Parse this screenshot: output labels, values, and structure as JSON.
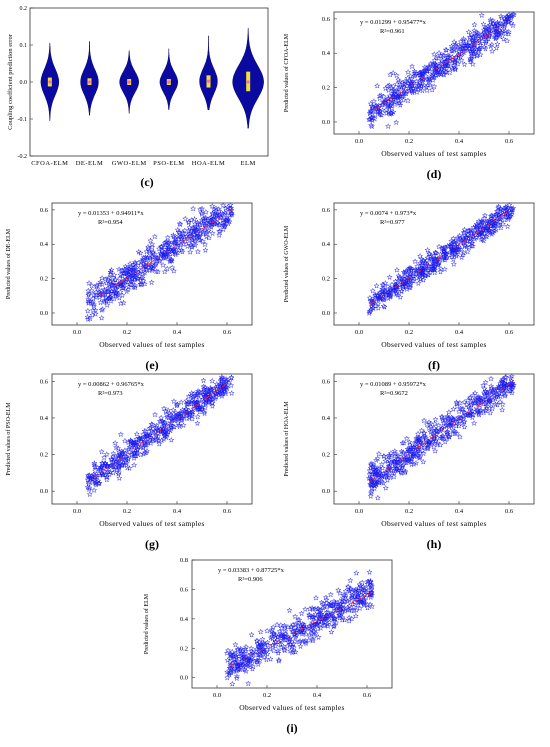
{
  "chart_data": [
    {
      "id": "c",
      "type": "violin",
      "panel_label": "(c)",
      "title": "",
      "xlabel": "",
      "ylabel": "Coupling coefficient prediction error",
      "categories": [
        "CFOA-ELM",
        "DE-ELM",
        "GWO-ELM",
        "PSO-ELM",
        "HOA-ELM",
        "ELM"
      ],
      "ylim": [
        -0.2,
        0.2
      ],
      "yticks": [
        "-0.2",
        "-0.1",
        "0.0",
        "0.1",
        "0.2"
      ],
      "violins": [
        {
          "name": "CFOA-ELM",
          "min": -0.105,
          "max": 0.105,
          "median": 0.0,
          "q1": -0.012,
          "q3": 0.012,
          "maxWidth": 0.45
        },
        {
          "name": "DE-ELM",
          "min": -0.09,
          "max": 0.11,
          "median": 0.0,
          "q1": -0.008,
          "q3": 0.01,
          "maxWidth": 0.45
        },
        {
          "name": "GWO-ELM",
          "min": -0.085,
          "max": 0.085,
          "median": 0.0,
          "q1": -0.008,
          "q3": 0.008,
          "maxWidth": 0.48
        },
        {
          "name": "PSO-ELM",
          "min": -0.075,
          "max": 0.09,
          "median": 0.0,
          "q1": -0.008,
          "q3": 0.008,
          "maxWidth": 0.45
        },
        {
          "name": "HOA-ELM",
          "min": -0.075,
          "max": 0.125,
          "median": 0.002,
          "q1": -0.015,
          "q3": 0.018,
          "maxWidth": 0.45
        },
        {
          "name": "ELM",
          "min": -0.125,
          "max": 0.145,
          "median": 0.0,
          "q1": -0.025,
          "q3": 0.028,
          "maxWidth": 0.78
        }
      ],
      "colors": {
        "violin": "#0a0aa0",
        "box": "#f0e030",
        "median": "#ff66cc"
      }
    },
    {
      "id": "d",
      "type": "scatter",
      "panel_label": "(d)",
      "xlabel": "Observed values of test samples",
      "ylabel": "Predicted values of CFOA-ELM",
      "equation": "y = 0.01299 + 0.95477*x",
      "r2": "R²=0.961",
      "intercept": 0.01299,
      "slope": 0.95477,
      "spread": 0.045,
      "xlim": [
        -0.1,
        0.7
      ],
      "ylim": [
        -0.07,
        0.64
      ],
      "xticks": [
        "0.0",
        "0.2",
        "0.4",
        "0.6"
      ],
      "yticks": [
        "0.0",
        "0.2",
        "0.4",
        "0.6"
      ],
      "x_range": [
        0.04,
        0.62
      ]
    },
    {
      "id": "e",
      "type": "scatter",
      "panel_label": "(e)",
      "xlabel": "Observed values of test samples",
      "ylabel": "Predicted values of DE-ELM",
      "equation": "y = 0.01353 + 0.94911*x",
      "r2": "R²=0.954",
      "intercept": 0.01353,
      "slope": 0.94911,
      "spread": 0.05,
      "xlim": [
        -0.1,
        0.7
      ],
      "ylim": [
        -0.07,
        0.64
      ],
      "xticks": [
        "0.0",
        "0.2",
        "0.4",
        "0.6"
      ],
      "yticks": [
        "0.0",
        "0.2",
        "0.4",
        "0.6"
      ],
      "x_range": [
        0.04,
        0.62
      ]
    },
    {
      "id": "f",
      "type": "scatter",
      "panel_label": "(f)",
      "xlabel": "Observed values of test samples",
      "ylabel": "Predicted values of GWO-ELM",
      "equation": "y = 0.0074 + 0.973*x",
      "r2": "R²=0.977",
      "intercept": 0.0074,
      "slope": 0.973,
      "spread": 0.035,
      "xlim": [
        -0.1,
        0.7
      ],
      "ylim": [
        -0.07,
        0.64
      ],
      "xticks": [
        "0.0",
        "0.2",
        "0.4",
        "0.6"
      ],
      "yticks": [
        "0.0",
        "0.2",
        "0.4",
        "0.6"
      ],
      "x_range": [
        0.04,
        0.62
      ]
    },
    {
      "id": "g",
      "type": "scatter",
      "panel_label": "(g)",
      "xlabel": "Observed values of test samples",
      "ylabel": "Predicted values of PSO-ELM",
      "equation": "y = 0.00862 + 0.96765*x",
      "r2": "R²=0.973",
      "intercept": 0.00862,
      "slope": 0.96765,
      "spread": 0.037,
      "xlim": [
        -0.1,
        0.7
      ],
      "ylim": [
        -0.07,
        0.64
      ],
      "xticks": [
        "0.0",
        "0.2",
        "0.4",
        "0.6"
      ],
      "yticks": [
        "0.0",
        "0.2",
        "0.4",
        "0.6"
      ],
      "x_range": [
        0.04,
        0.62
      ]
    },
    {
      "id": "h",
      "type": "scatter",
      "panel_label": "(h)",
      "xlabel": "Observed values of test samples",
      "ylabel": "Predicted values of HOA-ELM",
      "equation": "y = 0.01089 + 0.95972*x",
      "r2": "R²=0.9672",
      "intercept": 0.01089,
      "slope": 0.95972,
      "spread": 0.042,
      "xlim": [
        -0.1,
        0.7
      ],
      "ylim": [
        -0.07,
        0.64
      ],
      "xticks": [
        "0.0",
        "0.2",
        "0.4",
        "0.6"
      ],
      "yticks": [
        "0.0",
        "0.2",
        "0.4",
        "0.6"
      ],
      "x_range": [
        0.04,
        0.62
      ]
    },
    {
      "id": "i",
      "type": "scatter",
      "panel_label": "(i)",
      "xlabel": "Observed values of test samples",
      "ylabel": "Predicted values of ELM",
      "equation": "y = 0.03383 + 0.87725*x",
      "r2": "R²=0.906",
      "intercept": 0.03383,
      "slope": 0.87725,
      "spread": 0.06,
      "xlim": [
        -0.1,
        0.7
      ],
      "ylim": [
        -0.07,
        0.8
      ],
      "xticks": [
        "0.0",
        "0.2",
        "0.4",
        "0.6"
      ],
      "yticks": [
        "0.0",
        "0.2",
        "0.4",
        "0.6",
        "0.8"
      ],
      "x_range": [
        0.04,
        0.62
      ]
    }
  ],
  "colors": {
    "marker": "#1a1aee",
    "fit_dots": "#ff2020",
    "axis": "#333333"
  }
}
